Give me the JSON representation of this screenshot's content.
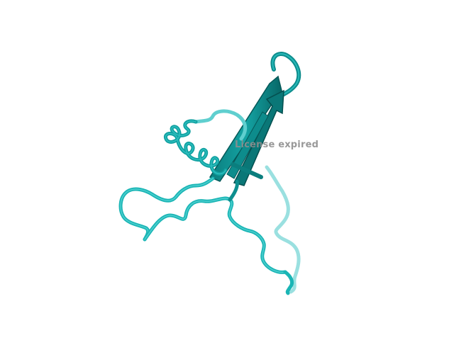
{
  "viewer": {
    "watermark": "License expired"
  },
  "structure": {
    "representation": "cartoon",
    "colors": {
      "background": "#ffffff",
      "strand": "#0d8c8c",
      "strand_dark": "#065c5c",
      "coil": "#1ab5b5",
      "coil_light": "#8fdcdc",
      "coil_dark": "#0a6e6e"
    }
  }
}
